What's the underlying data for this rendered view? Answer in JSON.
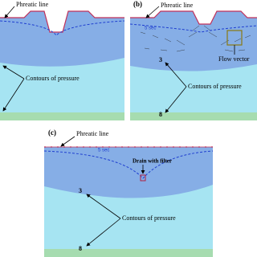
{
  "panels": [
    {
      "phreatic": "Phreatic line",
      "contours": "Contours of pressure"
    },
    {
      "label": "(b)",
      "phreatic": "Phreatic line",
      "time": "5 sec",
      "contour_3": "3",
      "contour_8": "8",
      "contours": "Contours of pressure",
      "flow": "Flow vector"
    },
    {
      "label": "(c)",
      "phreatic": "Phreatic line",
      "time": "5 sec",
      "drain": "Drain with filter",
      "contour_3": "3",
      "contour_8": "8",
      "contours": "Contours of pressure"
    }
  ]
}
